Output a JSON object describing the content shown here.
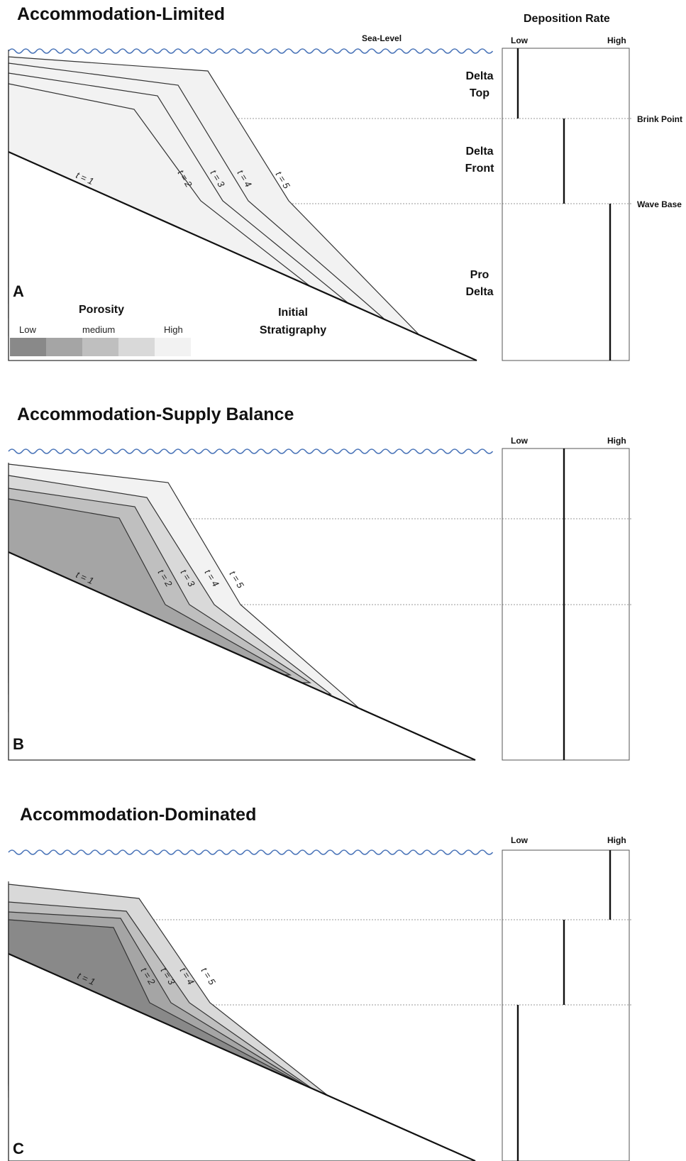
{
  "panels": [
    {
      "title": "Accommodation-Limited",
      "letter": "A",
      "sea_level_label": "Sea-Level",
      "deposition_rate_title": "Deposition Rate",
      "rate_low": "Low",
      "rate_high": "High",
      "zones": [
        "Delta Top",
        "Delta Front",
        "Pro Delta"
      ],
      "boundaries": [
        "Brink Point",
        "Wave Base"
      ],
      "time_labels": [
        "t = 1",
        "t = 2",
        "t = 3",
        "t = 4",
        "t = 5"
      ],
      "initial_label": "Initial Stratigraphy",
      "deposition_rates": {
        "delta_top": "low",
        "delta_front": "medium",
        "pro_delta": "high"
      },
      "legend": {
        "title": "Porosity",
        "low": "Low",
        "medium": "medium",
        "high": "High",
        "colors": [
          "#898989",
          "#a5a5a5",
          "#bfbfbf",
          "#d9d9d9",
          "#f2f2f2"
        ]
      }
    },
    {
      "title": "Accommodation-Supply Balance",
      "letter": "B",
      "rate_low": "Low",
      "rate_high": "High",
      "time_labels": [
        "t = 1",
        "t = 2",
        "t = 3",
        "t = 4",
        "t = 5"
      ],
      "deposition_rates": {
        "delta_top": "medium",
        "delta_front": "medium",
        "pro_delta": "medium"
      }
    },
    {
      "title": "Accommodation-Dominated",
      "letter": "C",
      "rate_low": "Low",
      "rate_high": "High",
      "time_labels": [
        "t = 1",
        "t = 2",
        "t = 3",
        "t = 4",
        "t = 5"
      ],
      "deposition_rates": {
        "delta_top": "high",
        "delta_front": "medium",
        "pro_delta": "low"
      }
    }
  ],
  "colors": {
    "sea_level": "#4a74b8",
    "outline": "#333333"
  }
}
